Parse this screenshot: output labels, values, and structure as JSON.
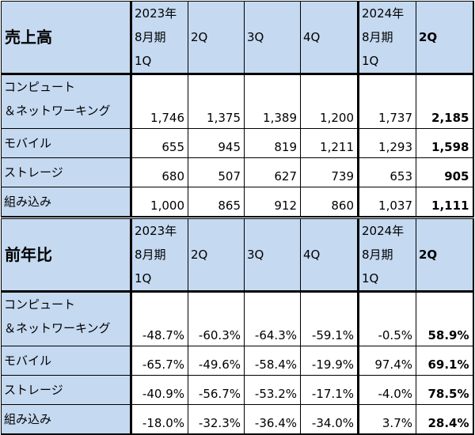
{
  "sales_table": {
    "title": "売上高",
    "headers": [
      [
        "2023年",
        "8月期",
        "1Q"
      ],
      [
        "2Q"
      ],
      [
        "3Q"
      ],
      [
        "4Q"
      ],
      [
        "2024年",
        "8月期",
        "1Q"
      ],
      [
        "2Q"
      ]
    ],
    "rows": [
      {
        "label": [
          "コンピュート",
          "＆ネットワーキング"
        ],
        "values": [
          "1,746",
          "1,375",
          "1,389",
          "1,200",
          "1,737",
          "2,185"
        ]
      },
      {
        "label": [
          "モバイル"
        ],
        "values": [
          "655",
          "945",
          "819",
          "1,211",
          "1,293",
          "1,598"
        ]
      },
      {
        "label": [
          "ストレージ"
        ],
        "values": [
          "680",
          "507",
          "627",
          "739",
          "653",
          "905"
        ]
      },
      {
        "label": [
          "組み込み"
        ],
        "values": [
          "1,000",
          "865",
          "912",
          "860",
          "1,037",
          "1,111"
        ]
      }
    ]
  },
  "yoy_table": {
    "title": "前年比",
    "headers": [
      [
        "2023年",
        "8月期",
        "1Q"
      ],
      [
        "2Q"
      ],
      [
        "3Q"
      ],
      [
        "4Q"
      ],
      [
        "2024年",
        "8月期",
        "1Q"
      ],
      [
        "2Q"
      ]
    ],
    "rows": [
      {
        "label": [
          "コンピュート",
          "＆ネットワーキング"
        ],
        "values": [
          "-48.7%",
          "-60.3%",
          "-64.3%",
          "-59.1%",
          "-0.5%",
          "58.9%"
        ]
      },
      {
        "label": [
          "モバイル"
        ],
        "values": [
          "-65.7%",
          "-49.6%",
          "-58.4%",
          "-19.9%",
          "97.4%",
          "69.1%"
        ]
      },
      {
        "label": [
          "ストレージ"
        ],
        "values": [
          "-40.9%",
          "-56.7%",
          "-53.2%",
          "-17.1%",
          "-4.0%",
          "78.5%"
        ]
      },
      {
        "label": [
          "組み込み"
        ],
        "values": [
          "-18.0%",
          "-32.3%",
          "-36.4%",
          "-34.0%",
          "3.7%",
          "28.4%"
        ]
      }
    ]
  }
}
